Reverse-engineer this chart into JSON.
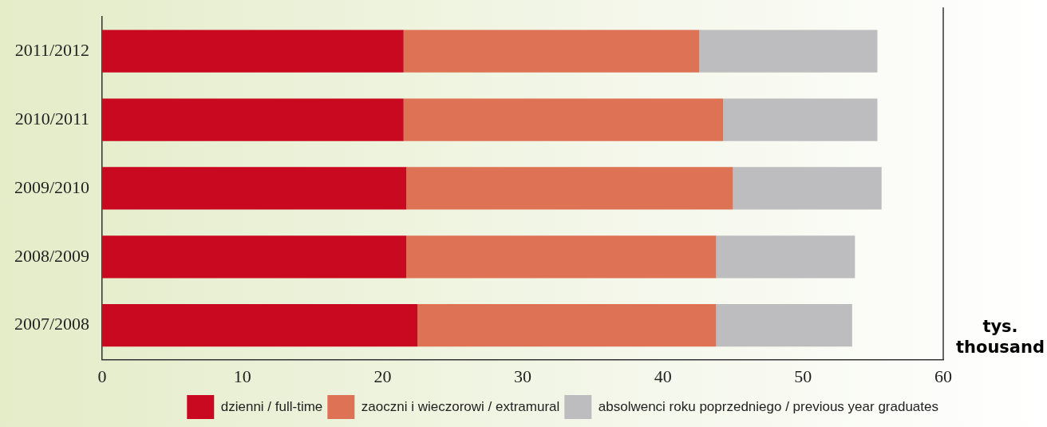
{
  "chart_data": {
    "type": "bar",
    "orientation": "horizontal",
    "stacked": true,
    "xlabel": "tys. thousand",
    "categories": [
      "2011/2012",
      "2010/2011",
      "2009/2010",
      "2008/2009",
      "2007/2008"
    ],
    "series": [
      {
        "name": "dzienni / full-time",
        "color": "#c8091f",
        "values": [
          21.5,
          21.5,
          21.7,
          21.7,
          22.5
        ]
      },
      {
        "name": "zaoczni i wieczorowi / extramural",
        "color": "#de7255",
        "values": [
          21.1,
          22.8,
          23.3,
          22.1,
          21.3
        ]
      },
      {
        "name": "absolwenci roku poprzedniego / previous year graduates",
        "color": "#bdbdbf",
        "values": [
          12.7,
          11.0,
          10.6,
          9.9,
          9.7
        ]
      }
    ],
    "xlim": [
      0,
      60
    ],
    "xticks": [
      0,
      10,
      20,
      30,
      40,
      50,
      60
    ],
    "grid": false,
    "legend": "bottom"
  }
}
